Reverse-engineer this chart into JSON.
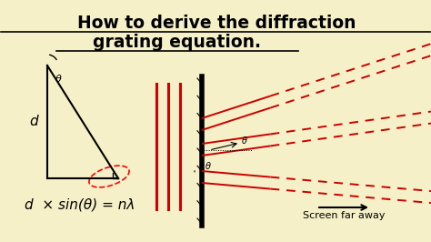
{
  "bg_color": "#f5f0c8",
  "title_line1": "How to derive the diffraction",
  "title_line2": "grating equation.",
  "title_fontsize": 13.5,
  "formula": "d  × sin(θ) = nλ",
  "formula_fontsize": 11,
  "label_d": "d",
  "label_theta": "θ",
  "screen_label": "Screen far away",
  "fig_w": 4.74,
  "fig_h": 2.66,
  "dpi": 100
}
